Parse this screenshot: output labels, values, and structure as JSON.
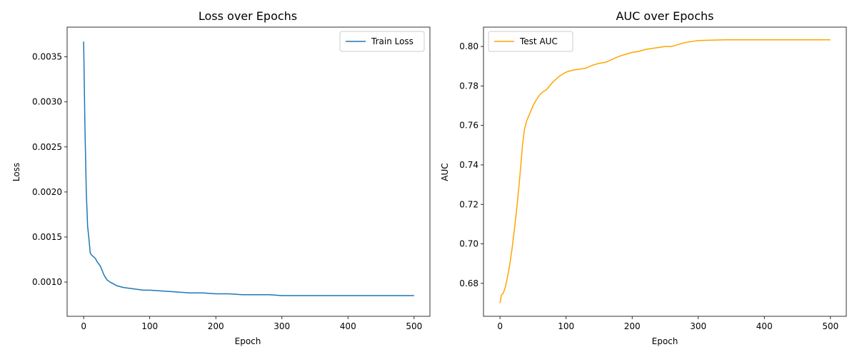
{
  "chart_data": [
    {
      "type": "line",
      "title": "Loss over Epochs",
      "xlabel": "Epoch",
      "ylabel": "Loss",
      "xlim": [
        -25,
        524
      ],
      "ylim": [
        0.00062,
        0.00383
      ],
      "xticks": [
        0,
        100,
        200,
        300,
        400,
        500
      ],
      "xtick_labels": [
        "0",
        "100",
        "200",
        "300",
        "400",
        "500"
      ],
      "yticks": [
        0.001,
        0.0015,
        0.002,
        0.0025,
        0.003,
        0.0035
      ],
      "ytick_labels": [
        "0.0010",
        "0.0015",
        "0.0020",
        "0.0025",
        "0.0030",
        "0.0035"
      ],
      "grid": false,
      "legend_position": "upper right",
      "series": [
        {
          "name": "Train Loss",
          "color": "#1f77b4",
          "x": [
            0,
            2,
            4,
            6,
            8,
            10,
            12,
            15,
            18,
            20,
            22,
            25,
            28,
            30,
            33,
            36,
            40,
            45,
            50,
            55,
            60,
            70,
            80,
            90,
            100,
            120,
            140,
            160,
            180,
            200,
            220,
            240,
            260,
            280,
            300,
            320,
            340,
            360,
            380,
            400,
            420,
            440,
            460,
            480,
            500
          ],
          "y": [
            0.00367,
            0.0027,
            0.002,
            0.00162,
            0.00148,
            0.00132,
            0.0013,
            0.00128,
            0.00126,
            0.00123,
            0.00121,
            0.00118,
            0.00113,
            0.00109,
            0.00105,
            0.00102,
            0.001,
            0.00098,
            0.00096,
            0.00095,
            0.00094,
            0.00093,
            0.00092,
            0.00091,
            0.00091,
            0.0009,
            0.00089,
            0.00088,
            0.00088,
            0.00087,
            0.00087,
            0.00086,
            0.00086,
            0.00086,
            0.00085,
            0.00085,
            0.00085,
            0.00085,
            0.00085,
            0.00085,
            0.00085,
            0.00085,
            0.00085,
            0.00085,
            0.00085
          ]
        }
      ]
    },
    {
      "type": "line",
      "title": "AUC over Epochs",
      "xlabel": "Epoch",
      "ylabel": "AUC",
      "xlim": [
        -25,
        524
      ],
      "ylim": [
        0.6633,
        0.8098
      ],
      "xticks": [
        0,
        100,
        200,
        300,
        400,
        500
      ],
      "xtick_labels": [
        "0",
        "100",
        "200",
        "300",
        "400",
        "500"
      ],
      "yticks": [
        0.68,
        0.7,
        0.72,
        0.74,
        0.76,
        0.78,
        0.8
      ],
      "ytick_labels": [
        "0.68",
        "0.70",
        "0.72",
        "0.74",
        "0.76",
        "0.78",
        "0.80"
      ],
      "grid": false,
      "legend_position": "upper left",
      "series": [
        {
          "name": "Test AUC",
          "color": "#ffa500",
          "x": [
            0,
            2,
            5,
            8,
            10,
            14,
            18,
            22,
            26,
            30,
            34,
            37,
            40,
            45,
            50,
            55,
            60,
            65,
            70,
            75,
            80,
            90,
            100,
            110,
            120,
            130,
            140,
            150,
            160,
            170,
            180,
            190,
            200,
            210,
            220,
            230,
            240,
            250,
            260,
            270,
            280,
            290,
            300,
            320,
            340,
            360,
            380,
            400,
            420,
            440,
            460,
            480,
            500
          ],
          "y": [
            0.67,
            0.674,
            0.675,
            0.678,
            0.681,
            0.688,
            0.697,
            0.708,
            0.72,
            0.734,
            0.75,
            0.758,
            0.762,
            0.766,
            0.77,
            0.773,
            0.7755,
            0.777,
            0.778,
            0.78,
            0.782,
            0.785,
            0.787,
            0.788,
            0.7885,
            0.789,
            0.7905,
            0.7915,
            0.792,
            0.7935,
            0.795,
            0.796,
            0.797,
            0.7975,
            0.7985,
            0.799,
            0.7995,
            0.8,
            0.8,
            0.801,
            0.802,
            0.8025,
            0.803,
            0.8032,
            0.8034,
            0.8034,
            0.8034,
            0.8034,
            0.8034,
            0.8034,
            0.8034,
            0.8034,
            0.8034
          ]
        }
      ]
    }
  ]
}
